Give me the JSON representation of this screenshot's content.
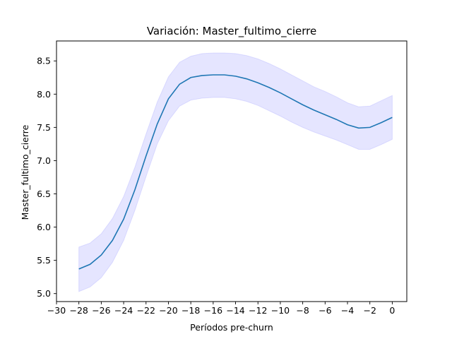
{
  "chart_data": {
    "type": "line",
    "title": "Variación: Master_fultimo_cierre",
    "xlabel": "Períodos pre-churn",
    "ylabel": "Master_fultimo_cierre",
    "xlim": [
      -30,
      1.3
    ],
    "ylim": [
      4.88,
      8.8
    ],
    "xticks": [
      -30,
      -28,
      -26,
      -24,
      -22,
      -20,
      -18,
      -16,
      -14,
      -12,
      -10,
      -8,
      -6,
      -4,
      -2,
      0
    ],
    "yticks": [
      5.0,
      5.5,
      6.0,
      6.5,
      7.0,
      7.5,
      8.0,
      8.5
    ],
    "grid": false,
    "colors": {
      "line": "#1f77b4",
      "band": "#0000ff"
    },
    "series": [
      {
        "x": [
          -28,
          -27,
          -26,
          -25,
          -24,
          -23,
          -22,
          -21,
          -20,
          -19,
          -18,
          -17,
          -16,
          -15,
          -14,
          -13,
          -12,
          -11,
          -10,
          -9,
          -8,
          -7,
          -6,
          -5,
          -4,
          -3,
          -2,
          -1,
          0
        ],
        "values": [
          5.37,
          5.44,
          5.58,
          5.8,
          6.12,
          6.56,
          7.07,
          7.55,
          7.93,
          8.15,
          8.25,
          8.28,
          8.29,
          8.29,
          8.27,
          8.23,
          8.17,
          8.1,
          8.02,
          7.93,
          7.84,
          7.76,
          7.69,
          7.62,
          7.54,
          7.49,
          7.5,
          7.57,
          7.65
        ],
        "lower": [
          5.03,
          5.1,
          5.24,
          5.47,
          5.8,
          6.25,
          6.76,
          7.25,
          7.6,
          7.82,
          7.91,
          7.94,
          7.95,
          7.95,
          7.93,
          7.89,
          7.83,
          7.75,
          7.67,
          7.58,
          7.5,
          7.43,
          7.37,
          7.31,
          7.24,
          7.17,
          7.17,
          7.24,
          7.32
        ],
        "upper": [
          5.7,
          5.76,
          5.9,
          6.13,
          6.46,
          6.9,
          7.4,
          7.88,
          8.26,
          8.48,
          8.57,
          8.61,
          8.62,
          8.62,
          8.61,
          8.58,
          8.53,
          8.46,
          8.38,
          8.29,
          8.2,
          8.11,
          8.04,
          7.96,
          7.87,
          7.81,
          7.82,
          7.9,
          7.98
        ]
      }
    ]
  }
}
